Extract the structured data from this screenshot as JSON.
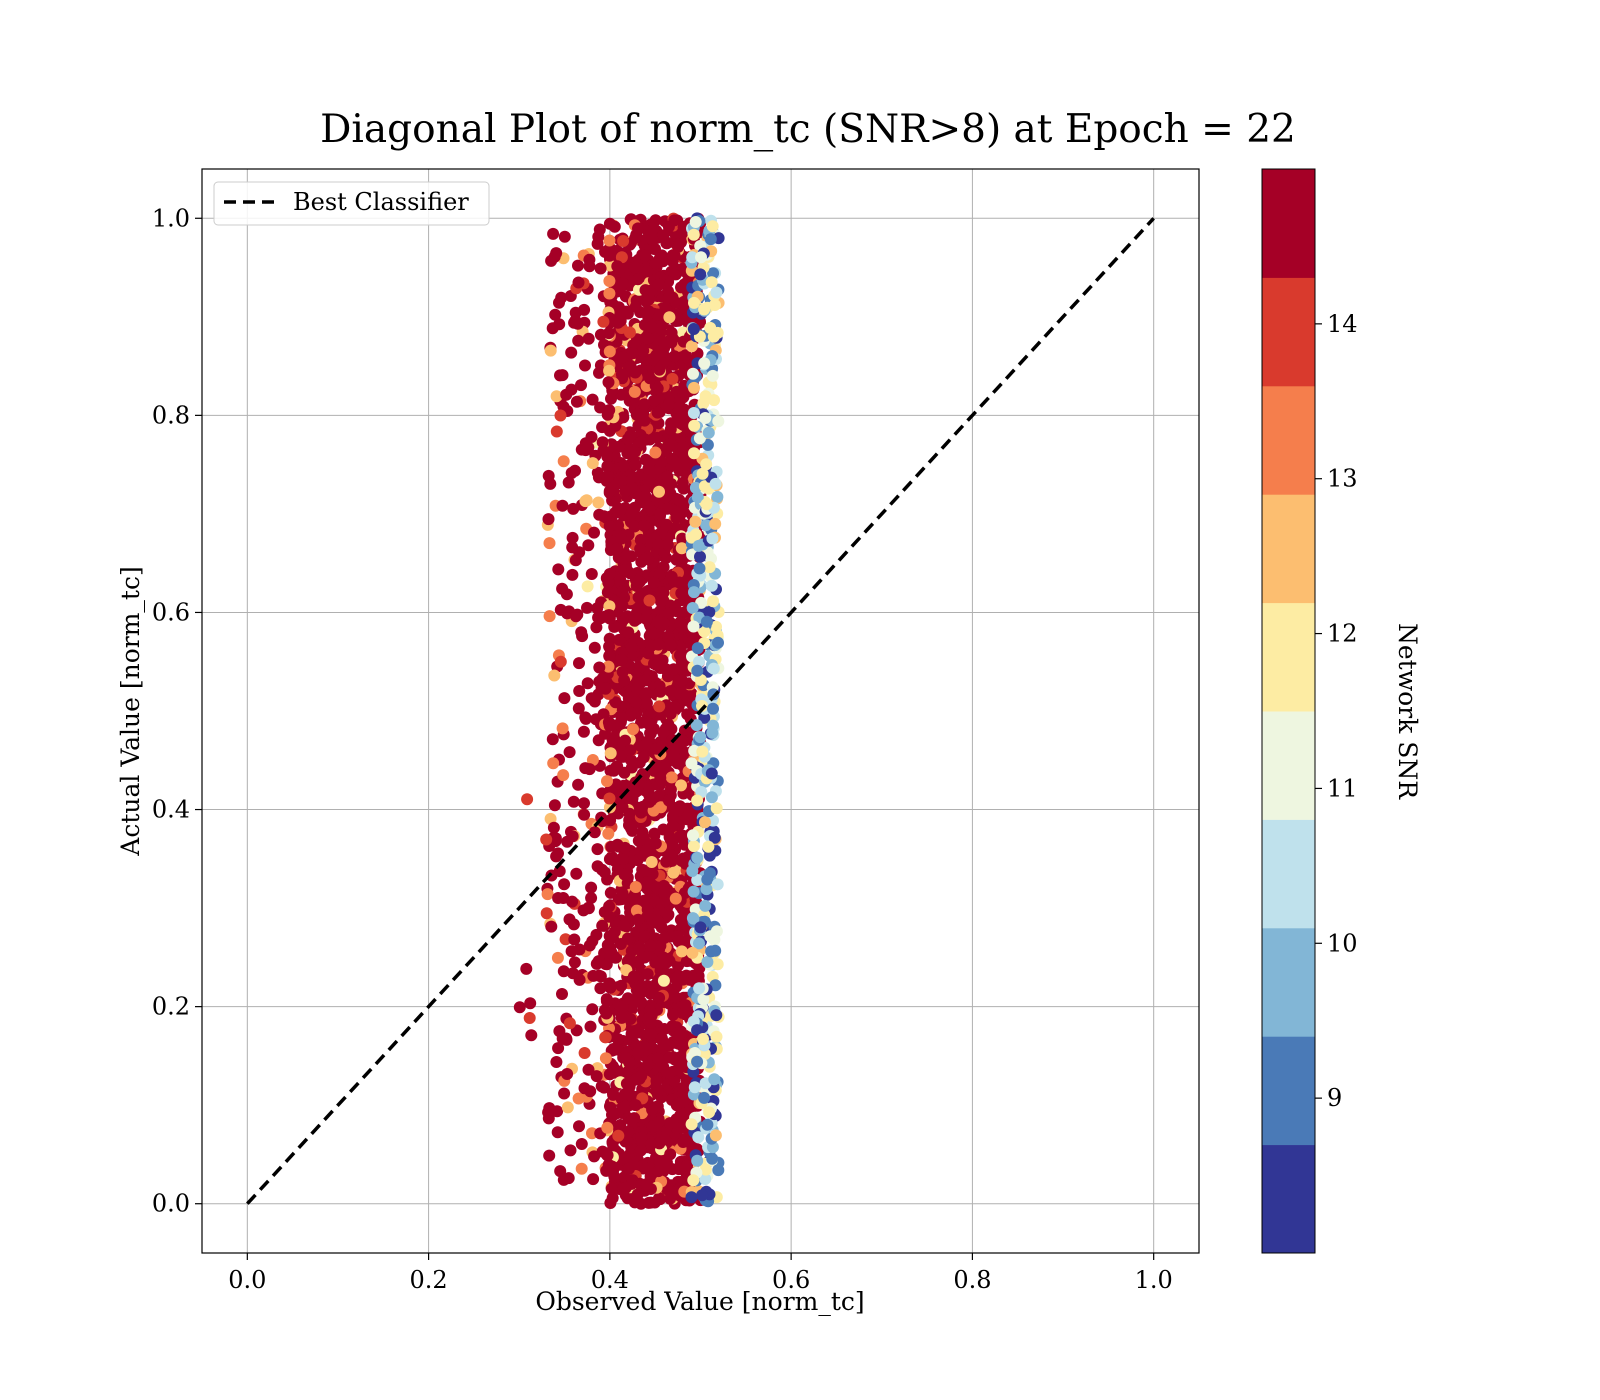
{
  "chart_data": {
    "type": "scatter",
    "title": "Diagonal Plot of norm_tc (SNR>8) at Epoch = 22",
    "xlabel": "Observed Value [norm_tc]",
    "ylabel": "Actual Value [norm_tc]",
    "xlim": [
      -0.05,
      1.05
    ],
    "ylim": [
      -0.05,
      1.05
    ],
    "x_ticks": [
      "0.0",
      "0.2",
      "0.4",
      "0.6",
      "0.8",
      "1.0"
    ],
    "y_ticks": [
      "0.0",
      "0.2",
      "0.4",
      "0.6",
      "0.8",
      "1.0"
    ],
    "grid": true,
    "legend": {
      "position": "top-left",
      "entries": [
        "Best Classifier"
      ]
    },
    "diagonal_line": {
      "label": "Best Classifier",
      "x": [
        0.0,
        1.0
      ],
      "y": [
        0.0,
        1.0
      ],
      "style": "dashed",
      "color": "#000000"
    },
    "scatter_cloud": {
      "x_range": [
        0.3,
        0.52
      ],
      "x_core": [
        0.4,
        0.5
      ],
      "y_range": [
        0.0,
        1.0
      ],
      "dominant_color": "#a50026"
    },
    "colorbar": {
      "label": "Network SNR",
      "range": [
        8.0,
        15.0
      ],
      "tick_labels": [
        "9",
        "10",
        "11",
        "12",
        "13",
        "14"
      ],
      "tick_values": [
        9,
        10,
        11,
        12,
        13,
        14
      ],
      "bands": [
        {
          "from": 8.0,
          "to": 8.7,
          "color": "#313695"
        },
        {
          "from": 8.7,
          "to": 9.4,
          "color": "#4a7ab7"
        },
        {
          "from": 9.4,
          "to": 10.1,
          "color": "#82b6d6"
        },
        {
          "from": 10.1,
          "to": 10.8,
          "color": "#bfe1ec"
        },
        {
          "from": 10.8,
          "to": 11.5,
          "color": "#eef6e0"
        },
        {
          "from": 11.5,
          "to": 12.2,
          "color": "#fdeca3"
        },
        {
          "from": 12.2,
          "to": 12.9,
          "color": "#fcbe70"
        },
        {
          "from": 12.9,
          "to": 13.6,
          "color": "#f57e4c"
        },
        {
          "from": 13.6,
          "to": 14.3,
          "color": "#d93a2d"
        },
        {
          "from": 14.3,
          "to": 15.0,
          "color": "#a50026"
        }
      ]
    }
  }
}
